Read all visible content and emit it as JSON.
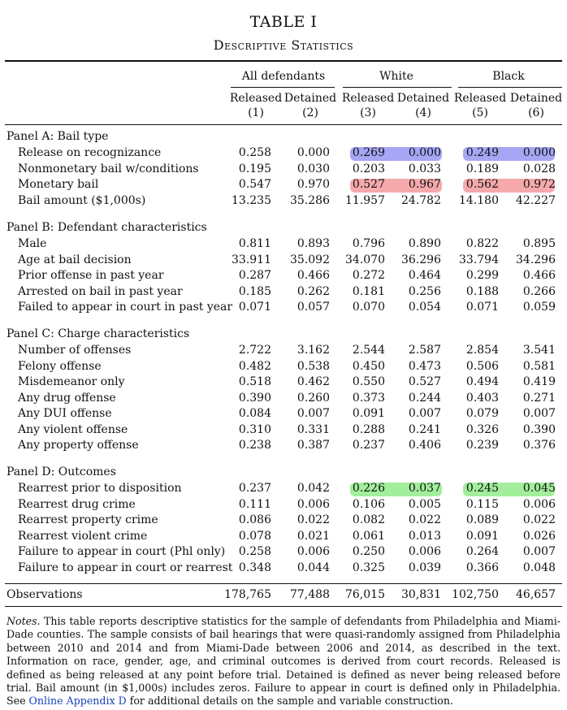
{
  "table": {
    "title": "TABLE I",
    "subtitle": "Descriptive Statistics",
    "colors": {
      "blue_highlight": "#a6a6f5",
      "red_highlight": "#f5a9ab",
      "green_highlight": "#a2ee9c",
      "link": "#1a3fb8"
    },
    "groups": [
      "All defendants",
      "White",
      "Black"
    ],
    "columns": [
      {
        "label": "Released",
        "num": "(1)"
      },
      {
        "label": "Detained",
        "num": "(2)"
      },
      {
        "label": "Released",
        "num": "(3)"
      },
      {
        "label": "Detained",
        "num": "(4)"
      },
      {
        "label": "Released",
        "num": "(5)"
      },
      {
        "label": "Detained",
        "num": "(6)"
      }
    ],
    "panels": [
      {
        "title": "Panel A: Bail type",
        "rows": [
          {
            "label": "Release on recognizance",
            "values": [
              "0.258",
              "0.000",
              "0.269",
              "0.000",
              "0.249",
              "0.000"
            ]
          },
          {
            "label": "Nonmonetary bail w/conditions",
            "values": [
              "0.195",
              "0.030",
              "0.203",
              "0.033",
              "0.189",
              "0.028"
            ]
          },
          {
            "label": "Monetary bail",
            "values": [
              "0.547",
              "0.970",
              "0.527",
              "0.967",
              "0.562",
              "0.972"
            ]
          },
          {
            "label": "Bail amount ($1,000s)",
            "values": [
              "13.235",
              "35.286",
              "11.957",
              "24.782",
              "14.180",
              "42.227"
            ]
          }
        ]
      },
      {
        "title": "Panel B: Defendant characteristics",
        "rows": [
          {
            "label": "Male",
            "values": [
              "0.811",
              "0.893",
              "0.796",
              "0.890",
              "0.822",
              "0.895"
            ]
          },
          {
            "label": "Age at bail decision",
            "values": [
              "33.911",
              "35.092",
              "34.070",
              "36.296",
              "33.794",
              "34.296"
            ]
          },
          {
            "label": "Prior offense in past year",
            "values": [
              "0.287",
              "0.466",
              "0.272",
              "0.464",
              "0.299",
              "0.466"
            ]
          },
          {
            "label": "Arrested on bail in past year",
            "values": [
              "0.185",
              "0.262",
              "0.181",
              "0.256",
              "0.188",
              "0.266"
            ]
          },
          {
            "label": "Failed to appear in court in past year",
            "values": [
              "0.071",
              "0.057",
              "0.070",
              "0.054",
              "0.071",
              "0.059"
            ]
          }
        ]
      },
      {
        "title": "Panel C: Charge characteristics",
        "rows": [
          {
            "label": "Number of offenses",
            "values": [
              "2.722",
              "3.162",
              "2.544",
              "2.587",
              "2.854",
              "3.541"
            ]
          },
          {
            "label": "Felony offense",
            "values": [
              "0.482",
              "0.538",
              "0.450",
              "0.473",
              "0.506",
              "0.581"
            ]
          },
          {
            "label": "Misdemeanor only",
            "values": [
              "0.518",
              "0.462",
              "0.550",
              "0.527",
              "0.494",
              "0.419"
            ]
          },
          {
            "label": "Any drug offense",
            "values": [
              "0.390",
              "0.260",
              "0.373",
              "0.244",
              "0.403",
              "0.271"
            ]
          },
          {
            "label": "Any DUI offense",
            "values": [
              "0.084",
              "0.007",
              "0.091",
              "0.007",
              "0.079",
              "0.007"
            ]
          },
          {
            "label": "Any violent offense",
            "values": [
              "0.310",
              "0.331",
              "0.288",
              "0.241",
              "0.326",
              "0.390"
            ]
          },
          {
            "label": "Any property offense",
            "values": [
              "0.238",
              "0.387",
              "0.237",
              "0.406",
              "0.239",
              "0.376"
            ]
          }
        ]
      },
      {
        "title": "Panel D: Outcomes",
        "rows": [
          {
            "label": "Rearrest prior to disposition",
            "values": [
              "0.237",
              "0.042",
              "0.226",
              "0.037",
              "0.245",
              "0.045"
            ]
          },
          {
            "label": "Rearrest drug crime",
            "values": [
              "0.111",
              "0.006",
              "0.106",
              "0.005",
              "0.115",
              "0.006"
            ]
          },
          {
            "label": "Rearrest property crime",
            "values": [
              "0.086",
              "0.022",
              "0.082",
              "0.022",
              "0.089",
              "0.022"
            ]
          },
          {
            "label": "Rearrest violent crime",
            "values": [
              "0.078",
              "0.021",
              "0.061",
              "0.013",
              "0.091",
              "0.026"
            ]
          },
          {
            "label": "Failure to appear in court (Phl only)",
            "values": [
              "0.258",
              "0.006",
              "0.250",
              "0.006",
              "0.264",
              "0.007"
            ]
          },
          {
            "label": "Failure to appear in court or rearrest",
            "values": [
              "0.348",
              "0.044",
              "0.325",
              "0.039",
              "0.366",
              "0.048"
            ]
          }
        ]
      }
    ],
    "observations": {
      "label": "Observations",
      "values": [
        "178,765",
        "77,488",
        "76,015",
        "30,831",
        "102,750",
        "46,657"
      ]
    },
    "notes": {
      "lead": "Notes.",
      "body": " This table reports descriptive statistics for the sample of defendants from Philadelphia and Miami-Dade counties. The sample consists of bail hearings that were quasi-randomly assigned from Philadelphia between 2010 and 2014 and from Miami-Dade between 2006 and 2014, as described in the text. Information on race, gender, age, and criminal outcomes is derived from court records. Released is defined as being released at any point before trial. Detained is defined as never being released before trial. Bail amount (in $1,000s) includes zeros. Failure to appear in court is defined only in Philadelphia. See ",
      "link_text": "Online Appendix D",
      "tail": " for additional details on the sample and variable construction."
    }
  }
}
